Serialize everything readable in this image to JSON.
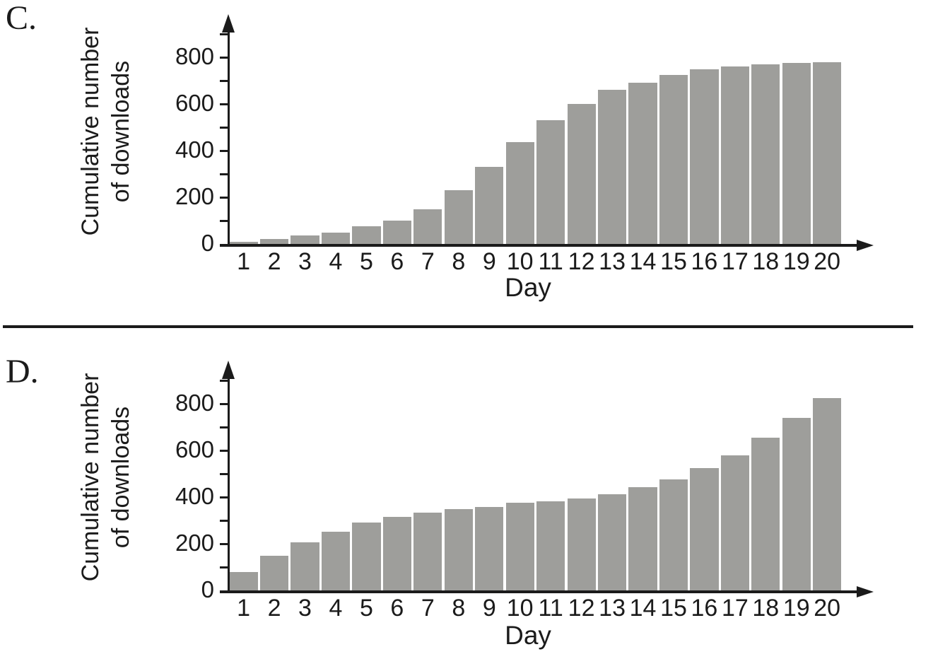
{
  "page": {
    "background": "#ffffff",
    "divider_color": "#1b1b1b"
  },
  "chart_data": [
    {
      "type": "bar",
      "panel_label": "C.",
      "xlabel": "Day",
      "ylabel": "Cumulative number of downloads",
      "ylabel_lines": [
        "Cumulative number",
        "of downloads"
      ],
      "categories": [
        "1",
        "2",
        "3",
        "4",
        "5",
        "6",
        "7",
        "8",
        "9",
        "10",
        "11",
        "12",
        "13",
        "14",
        "15",
        "16",
        "17",
        "18",
        "19",
        "20"
      ],
      "values": [
        10,
        20,
        35,
        50,
        75,
        100,
        150,
        230,
        330,
        435,
        530,
        600,
        660,
        690,
        725,
        750,
        760,
        770,
        775,
        780
      ],
      "yticks": [
        "0",
        "200",
        "400",
        "600",
        "800"
      ],
      "ytick_values": [
        0,
        200,
        400,
        600,
        800
      ],
      "minor_ytick_values": [
        100,
        300,
        500,
        700,
        900
      ],
      "ylim": [
        0,
        950
      ],
      "bar_color": "#9e9e9b",
      "axis_color": "#1b1b1b",
      "grid": false,
      "legend": null
    },
    {
      "type": "bar",
      "panel_label": "D.",
      "xlabel": "Day",
      "ylabel": "Cumulative number of downloads",
      "ylabel_lines": [
        "Cumulative number",
        "of downloads"
      ],
      "categories": [
        "1",
        "2",
        "3",
        "4",
        "5",
        "6",
        "7",
        "8",
        "9",
        "10",
        "11",
        "12",
        "13",
        "14",
        "15",
        "16",
        "17",
        "18",
        "19",
        "20"
      ],
      "values": [
        80,
        148,
        207,
        252,
        290,
        315,
        333,
        350,
        358,
        375,
        381,
        394,
        413,
        442,
        475,
        525,
        580,
        655,
        740,
        825
      ],
      "yticks": [
        "0",
        "200",
        "400",
        "600",
        "800"
      ],
      "ytick_values": [
        0,
        200,
        400,
        600,
        800
      ],
      "minor_ytick_values": [
        100,
        300,
        500,
        700,
        900
      ],
      "ylim": [
        0,
        950
      ],
      "bar_color": "#9e9e9b",
      "axis_color": "#1b1b1b",
      "grid": false,
      "legend": null
    }
  ]
}
